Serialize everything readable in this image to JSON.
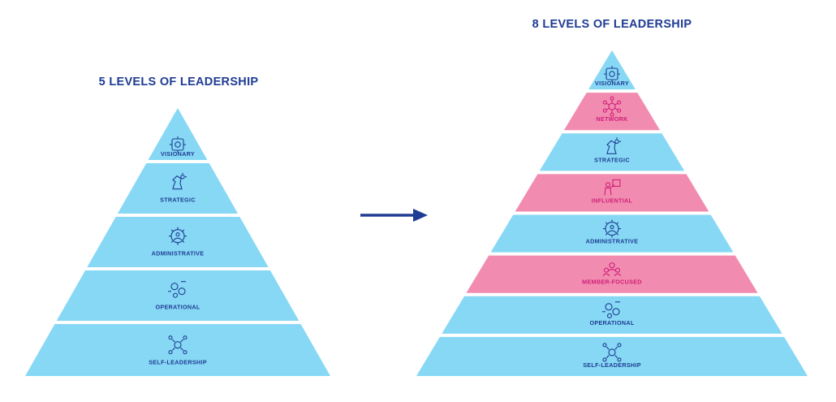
{
  "left_pyramid": {
    "title": "5 LEVELS OF LEADERSHIP",
    "levels": [
      {
        "label": "VISIONARY",
        "icon": "vision-icon",
        "theme": "blue"
      },
      {
        "label": "STRATEGIC",
        "icon": "chess-knight-icon",
        "theme": "blue"
      },
      {
        "label": "ADMINISTRATIVE",
        "icon": "gear-group-icon",
        "theme": "blue"
      },
      {
        "label": "OPERATIONAL",
        "icon": "process-icon",
        "theme": "blue"
      },
      {
        "label": "SELF-LEADERSHIP",
        "icon": "network-person-icon",
        "theme": "blue"
      }
    ]
  },
  "right_pyramid": {
    "title": "8 LEVELS OF LEADERSHIP",
    "levels": [
      {
        "label": "VISIONARY",
        "icon": "vision-icon",
        "theme": "blue"
      },
      {
        "label": "NETWORK",
        "icon": "network-hub-icon",
        "theme": "pink"
      },
      {
        "label": "STRATEGIC",
        "icon": "chess-knight-icon",
        "theme": "blue"
      },
      {
        "label": "INFLUENTIAL",
        "icon": "presenter-icon",
        "theme": "pink"
      },
      {
        "label": "ADMINISTRATIVE",
        "icon": "gear-group-icon",
        "theme": "blue"
      },
      {
        "label": "MEMBER-FOCUSED",
        "icon": "team-icon",
        "theme": "pink"
      },
      {
        "label": "OPERATIONAL",
        "icon": "process-icon",
        "theme": "blue"
      },
      {
        "label": "SELF-LEADERSHIP",
        "icon": "network-person-icon",
        "theme": "blue"
      }
    ]
  },
  "colors": {
    "blue_fill": "#86d8f4",
    "blue_text": "#1f3c94",
    "pink_fill": "#f28bb0",
    "pink_text": "#cf1f78",
    "title": "#1f3c94",
    "arrow": "#1f3c94"
  },
  "arrow": {
    "icon": "right-arrow-icon"
  }
}
